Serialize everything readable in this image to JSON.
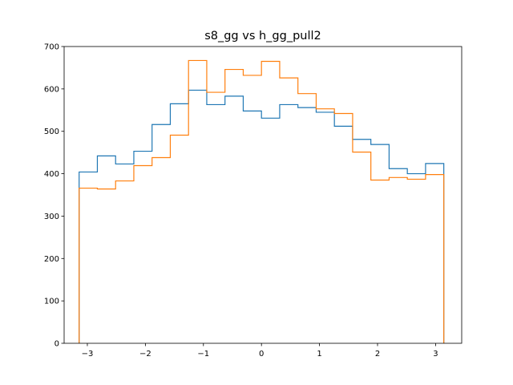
{
  "chart_data": {
    "type": "histogram-step",
    "title": "s8_gg vs h_gg_pull2",
    "xlabel": "",
    "ylabel": "",
    "xlim": [
      -3.4,
      3.45
    ],
    "ylim": [
      0,
      700
    ],
    "xticks": [
      -3,
      -2,
      -1,
      0,
      1,
      2,
      3
    ],
    "xtick_labels": [
      "−3",
      "−2",
      "−1",
      "0",
      "1",
      "2",
      "3"
    ],
    "yticks": [
      0,
      100,
      200,
      300,
      400,
      500,
      600,
      700
    ],
    "ytick_labels": [
      "0",
      "100",
      "200",
      "300",
      "400",
      "500",
      "600",
      "700"
    ],
    "grid": false,
    "bin_edges": [
      -3.1416,
      -2.8274,
      -2.5133,
      -2.1991,
      -1.885,
      -1.5708,
      -1.2566,
      -0.9425,
      -0.6283,
      -0.3142,
      0,
      0.3142,
      0.6283,
      0.9425,
      1.2566,
      1.5708,
      1.885,
      2.1991,
      2.5133,
      2.8274,
      3.1416
    ],
    "series": [
      {
        "color": "#1f77b4",
        "values": [
          404,
          442,
          423,
          453,
          516,
          565,
          597,
          563,
          583,
          548,
          531,
          563,
          556,
          545,
          512,
          481,
          469,
          412,
          400,
          424
        ]
      },
      {
        "color": "#ff7f0e",
        "values": [
          366,
          364,
          383,
          419,
          438,
          491,
          667,
          592,
          646,
          632,
          665,
          626,
          589,
          553,
          542,
          451,
          385,
          391,
          387,
          398
        ]
      }
    ]
  }
}
